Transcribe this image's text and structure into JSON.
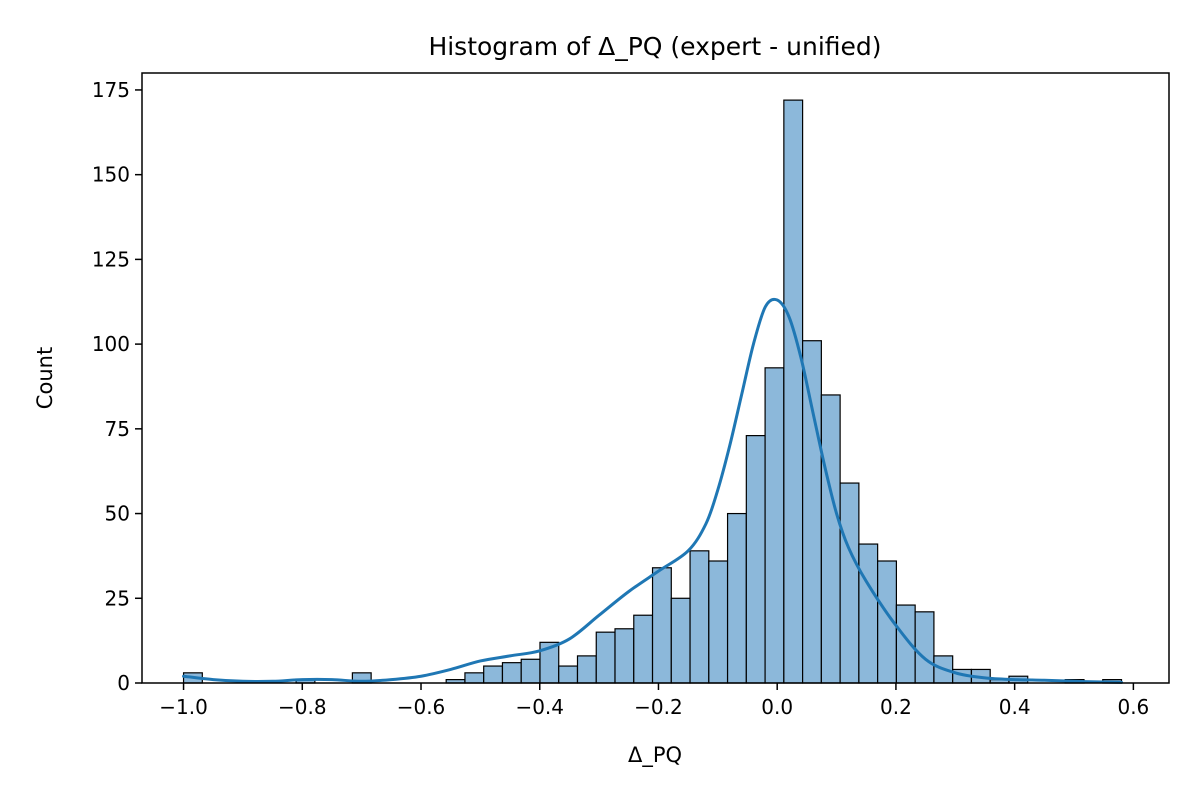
{
  "chart_data": {
    "type": "bar",
    "title": "Histogram of Δ_PQ (expert - unified)",
    "xlabel": "Δ_PQ",
    "ylabel": "Count",
    "xlim": [
      -1.07,
      0.66
    ],
    "ylim": [
      0,
      180
    ],
    "x_ticks": [
      -1.0,
      -0.8,
      -0.6,
      -0.4,
      -0.2,
      0.0,
      0.2,
      0.4,
      0.6
    ],
    "x_tick_labels": [
      "−1.0",
      "−0.8",
      "−0.6",
      "−0.4",
      "−0.2",
      "0.0",
      "0.2",
      "0.4",
      "0.6"
    ],
    "y_ticks": [
      0,
      25,
      50,
      75,
      100,
      125,
      150,
      175
    ],
    "y_tick_labels": [
      "0",
      "25",
      "50",
      "75",
      "100",
      "125",
      "150",
      "175"
    ],
    "bin_start": -1.0,
    "bin_width": 0.0316,
    "counts": [
      3,
      0,
      0,
      0,
      0,
      0,
      1,
      0,
      0,
      3,
      0,
      0,
      0,
      0,
      1,
      3,
      5,
      6,
      7,
      12,
      5,
      8,
      15,
      16,
      20,
      34,
      25,
      39,
      36,
      50,
      73,
      93,
      172,
      101,
      85,
      59,
      41,
      36,
      23,
      21,
      8,
      4,
      4,
      1,
      2,
      0,
      0,
      1,
      0,
      1
    ],
    "kde": {
      "x": [
        -1.0,
        -0.95,
        -0.9,
        -0.85,
        -0.8,
        -0.75,
        -0.7,
        -0.65,
        -0.6,
        -0.55,
        -0.5,
        -0.45,
        -0.4,
        -0.35,
        -0.3,
        -0.25,
        -0.2,
        -0.15,
        -0.12,
        -0.1,
        -0.08,
        -0.06,
        -0.04,
        -0.02,
        0.0,
        0.02,
        0.04,
        0.06,
        0.08,
        0.1,
        0.12,
        0.15,
        0.2,
        0.25,
        0.3,
        0.35,
        0.4,
        0.45,
        0.5,
        0.55,
        0.58
      ],
      "y": [
        2,
        1,
        0.5,
        0.5,
        1,
        1,
        0.5,
        1,
        2,
        4,
        6.5,
        8,
        9.5,
        13,
        20,
        27,
        33,
        39,
        47,
        57,
        70,
        85,
        100,
        111,
        113,
        108,
        96,
        80,
        64,
        50,
        40,
        30,
        17,
        7,
        3,
        1.5,
        1,
        0.8,
        0.5,
        0.3,
        0.2
      ]
    },
    "bar_fill": "#8cb8da",
    "bar_stroke": "#000000",
    "line_color": "#1f77b4",
    "grid": false,
    "legend": "none"
  }
}
